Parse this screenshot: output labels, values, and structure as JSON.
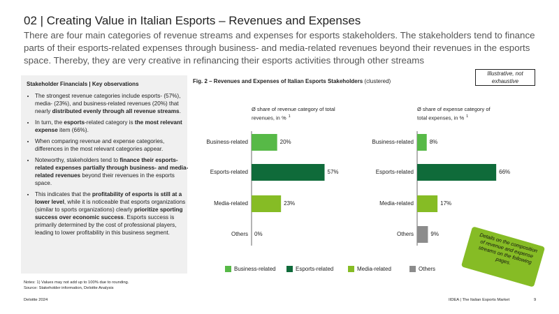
{
  "header": {
    "title": "02 | Creating Value in Italian Esports – Revenues and Expenses",
    "subtitle": "There are four main categories of revenue streams and expenses for esports stakeholders. The stakeholders tend to finance parts of their esports-related expenses through business- and media-related revenues beyond their revenues in the esports space. Thereby, they are very creative in refinancing their esports activities through other streams"
  },
  "panel": {
    "title": "Stakeholder Financials | Key observations",
    "bullets": [
      [
        "The strongest revenue categories include esports- (57%), media- (23%), and business-related revenues (20%) that nearly ",
        "distributed evenly through all revenue streams",
        "."
      ],
      [
        "In turn, the ",
        "esports",
        "-related category is ",
        "the most relevant expense",
        " item (66%)."
      ],
      [
        "When comparing revenue and expense categories, differences in the most relevant categories appear."
      ],
      [
        "Noteworthy, stakeholders tend to ",
        "finance their esports-related expenses partially through business- and media-related revenues",
        " beyond their revenues in the esports space."
      ],
      [
        "This indicates that the ",
        "profitability of esports is still at a lower level",
        ", while it is noticeable that esports organizations (similar to sports organizations) clearly ",
        "prioritize sporting success over economic success",
        ". Esports success is primarily determined by the cost of professional players, leading to lower profitability in this business segment."
      ]
    ]
  },
  "figure": {
    "title": "Fig. 2 – Revenues and Expenses of Italian Esports Stakeholders",
    "title_note": " (clustered)",
    "badge": "Illustrative, not exhaustive",
    "callout": "Details on the composition of revenue and expense streams on the following pages."
  },
  "chart_data": [
    {
      "type": "bar",
      "orientation": "horizontal",
      "subtitle": "Ø share of revenue category of total revenues, in %",
      "footnote_ref": "1",
      "categories": [
        "Business-related",
        "Esports-related",
        "Media-related",
        "Others"
      ],
      "values": [
        20,
        57,
        23,
        0
      ],
      "value_labels": [
        "20%",
        "57%",
        "23%",
        "0%"
      ],
      "colors": [
        "#57b947",
        "#0f6b3a",
        "#86bc25",
        "#8c8c8c"
      ],
      "xlim": [
        0,
        60
      ]
    },
    {
      "type": "bar",
      "orientation": "horizontal",
      "subtitle": "Ø share of expense category of total expenses, in %",
      "footnote_ref": "1",
      "categories": [
        "Business-related",
        "Esports-related",
        "Media-related",
        "Others"
      ],
      "values": [
        8,
        66,
        17,
        9
      ],
      "value_labels": [
        "8%",
        "66%",
        "17%",
        "9%"
      ],
      "colors": [
        "#57b947",
        "#0f6b3a",
        "#86bc25",
        "#8c8c8c"
      ],
      "xlim": [
        0,
        70
      ]
    }
  ],
  "notes": [
    "Notes: 1) Values may not add up to 100% due to rounding.",
    "Source: Stakeholder information, Deloitte Analysis"
  ],
  "footer": {
    "left": "Deloitte 2024",
    "right": "IIDEA | The Italian Esports Market",
    "page": "9"
  }
}
